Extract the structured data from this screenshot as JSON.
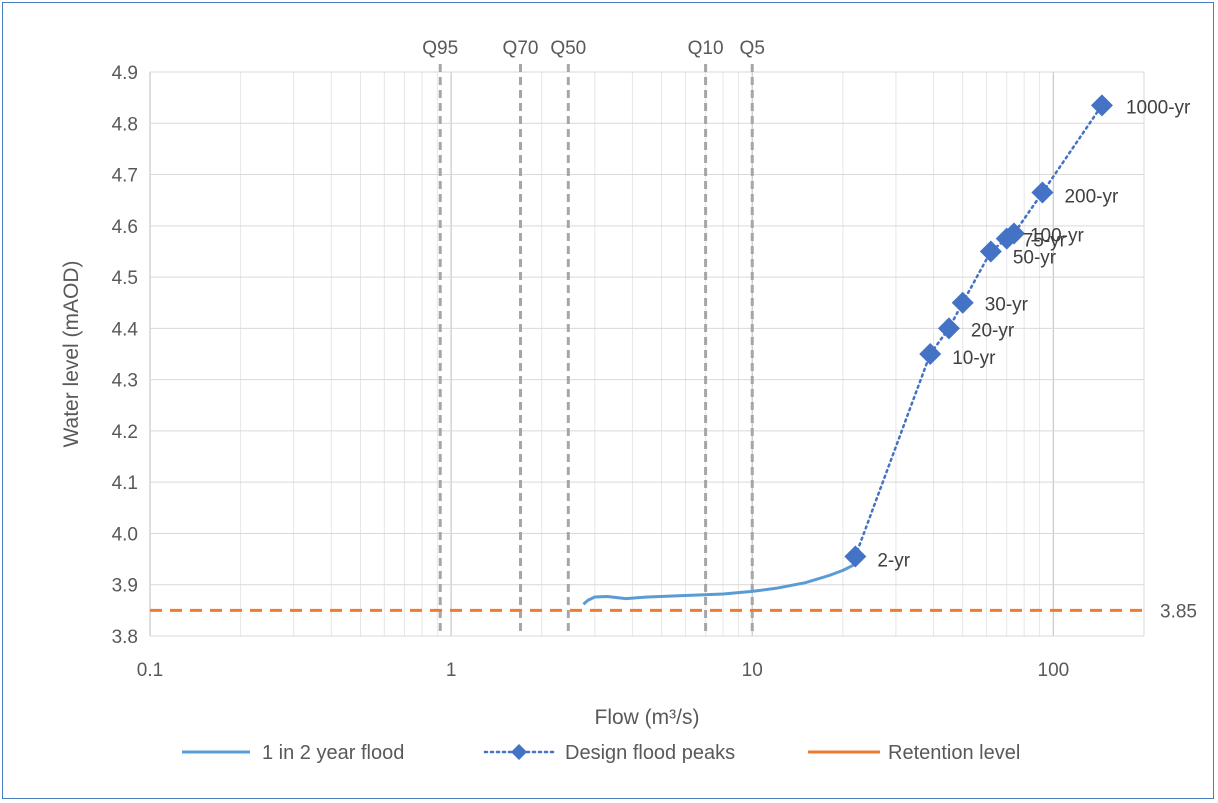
{
  "chart_data": {
    "type": "scatter",
    "xlabel": "Flow (m³/s)",
    "ylabel": "Water level (mAOD)",
    "x_scale": "log",
    "xlim": [
      0.1,
      200
    ],
    "ylim": [
      3.8,
      4.9
    ],
    "x_ticks": [
      0.1,
      1,
      10,
      100
    ],
    "x_tick_labels": [
      "0.1",
      "1",
      "10",
      "100"
    ],
    "y_ticks": [
      3.8,
      3.9,
      4.0,
      4.1,
      4.2,
      4.3,
      4.4,
      4.5,
      4.6,
      4.7,
      4.8,
      4.9
    ],
    "y_tick_labels": [
      "3.8",
      "3.9",
      "4.0",
      "4.1",
      "4.2",
      "4.3",
      "4.4",
      "4.5",
      "4.6",
      "4.7",
      "4.8",
      "4.9"
    ],
    "grid": true,
    "legend_position": "bottom",
    "series": [
      {
        "name": "1 in 2 year flood",
        "style": "line",
        "color": "#5b9bd5",
        "x": [
          2.75,
          2.85,
          3.0,
          3.3,
          3.8,
          4.5,
          6.0,
          8.0,
          10.0,
          12.0,
          15.0,
          18.0,
          20.0,
          22.0
        ],
        "y": [
          3.862,
          3.87,
          3.876,
          3.877,
          3.873,
          3.876,
          3.879,
          3.882,
          3.887,
          3.893,
          3.904,
          3.918,
          3.928,
          3.94
        ]
      },
      {
        "name": "Design flood peaks",
        "style": "dotted-line-diamond-markers",
        "color": "#4472c4",
        "x": [
          22,
          39,
          45,
          50,
          62,
          70,
          74,
          92,
          145
        ],
        "y": [
          3.955,
          4.35,
          4.4,
          4.45,
          4.55,
          4.575,
          4.585,
          4.665,
          4.835
        ],
        "point_labels": [
          "2-yr",
          "10-yr",
          "20-yr",
          "30-yr",
          "50-yr",
          "75-yr",
          "100-yr",
          "200-yr",
          "1000-yr"
        ]
      },
      {
        "name": "Retention level",
        "style": "dashed-horizontal-line",
        "color": "#ed7d31",
        "y": 3.85,
        "label": "3.85"
      }
    ],
    "reference_lines": [
      {
        "label": "Q95",
        "x": 0.92
      },
      {
        "label": "Q70",
        "x": 1.7
      },
      {
        "label": "Q50",
        "x": 2.45
      },
      {
        "label": "Q10",
        "x": 7.0
      },
      {
        "label": "Q5",
        "x": 10.0
      }
    ],
    "reference_line_color": "#a6a6a6"
  }
}
